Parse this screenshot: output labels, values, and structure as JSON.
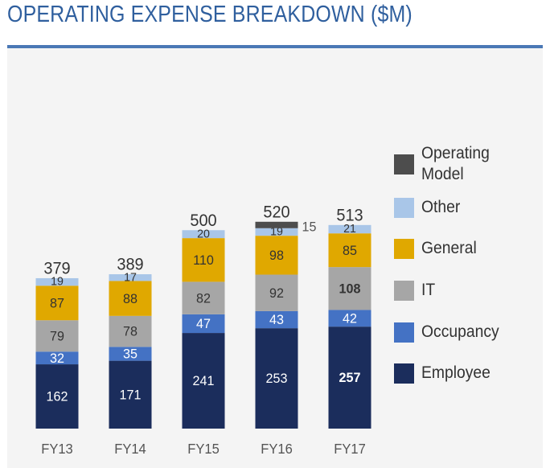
{
  "header": {
    "title": "OPERATING EXPENSE BREAKDOWN ($M)"
  },
  "colors": {
    "title": "#2f5f9e",
    "rule": "#4a78b5",
    "panel": "#f4f4f4",
    "employee": "#1b2d5c",
    "occupancy": "#4472c4",
    "it": "#a6a6a6",
    "general": "#e0a800",
    "other": "#a9c6e8",
    "operating_model": "#4d4d4d"
  },
  "chart_data": {
    "type": "bar",
    "stacked": true,
    "title": "OPERATING EXPENSE BREAKDOWN ($M)",
    "categories": [
      "FY13",
      "FY14",
      "FY15",
      "FY16",
      "FY17"
    ],
    "series": [
      {
        "name": "Employee",
        "key": "employee",
        "values": [
          162,
          171,
          241,
          253,
          257
        ]
      },
      {
        "name": "Occupancy",
        "key": "occupancy",
        "values": [
          32,
          35,
          47,
          43,
          42
        ]
      },
      {
        "name": "IT",
        "key": "it",
        "values": [
          79,
          78,
          82,
          92,
          108
        ]
      },
      {
        "name": "General",
        "key": "general",
        "values": [
          87,
          88,
          110,
          98,
          85
        ]
      },
      {
        "name": "Other",
        "key": "other",
        "values": [
          19,
          17,
          20,
          19,
          21
        ]
      },
      {
        "name": "Operating\nModel",
        "key": "operating_model",
        "values": [
          null,
          null,
          null,
          15,
          null
        ]
      }
    ],
    "totals": [
      379,
      389,
      500,
      520,
      513
    ],
    "legend_order": [
      "operating_model",
      "other",
      "general",
      "it",
      "occupancy",
      "employee"
    ],
    "legend_position": "right",
    "grid": false,
    "xlabel": "",
    "ylabel": ""
  }
}
